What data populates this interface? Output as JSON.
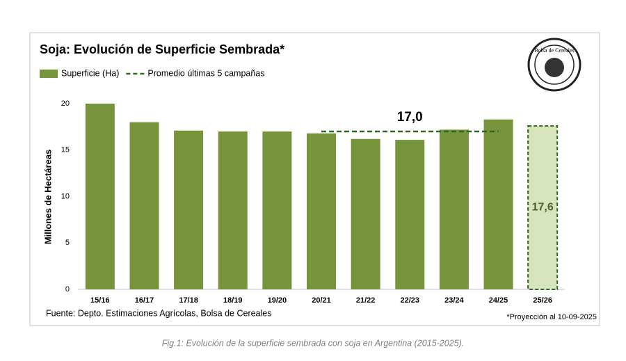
{
  "chart_data": {
    "type": "bar",
    "title": "Soja: Evolución de Superficie Sembrada*",
    "y_label": "Millones de Hectáreas",
    "categories": [
      "15/16",
      "16/17",
      "17/18",
      "18/19",
      "19/20",
      "20/21",
      "21/22",
      "22/23",
      "23/24",
      "24/25",
      "25/26"
    ],
    "series": [
      {
        "name": "Superficie (Ha)",
        "color": "#77933c",
        "bar_colors": [
          "#77933c",
          "#77933c",
          "#77933c",
          "#77933c",
          "#77933c",
          "#77933c",
          "#77933c",
          "#77933c",
          "#77933c",
          "#77933c",
          "#d7e4bd"
        ],
        "values": [
          20.0,
          18.0,
          17.1,
          17.0,
          17.0,
          16.8,
          16.2,
          16.1,
          17.2,
          18.3,
          17.6
        ],
        "value_labels": [
          null,
          null,
          null,
          null,
          null,
          null,
          null,
          null,
          null,
          null,
          "17,6"
        ]
      },
      {
        "name": "Promedio últimas 5 campañas",
        "color": "#2e6b1f",
        "style": "dashed-line",
        "values": [
          null,
          null,
          null,
          null,
          null,
          17.0,
          17.0,
          17.0,
          17.0,
          17.0,
          null
        ],
        "value_labels": [
          null,
          null,
          null,
          null,
          null,
          null,
          null,
          "17,0",
          null,
          null,
          null
        ]
      }
    ],
    "ylim": [
      0,
      20
    ],
    "yticks": [
      0,
      5,
      10,
      15,
      20
    ],
    "grid": false,
    "source": "Fuente: Depto. Estimaciones Agrícolas, Bolsa de Cereales",
    "footnote": "*Proyección al 10-09-2025",
    "caption": "Fig.1: Evolución de la superficie sembrada con soja en Argentina (2015-2025).",
    "logo_text": "Bolsa de Cereales"
  }
}
